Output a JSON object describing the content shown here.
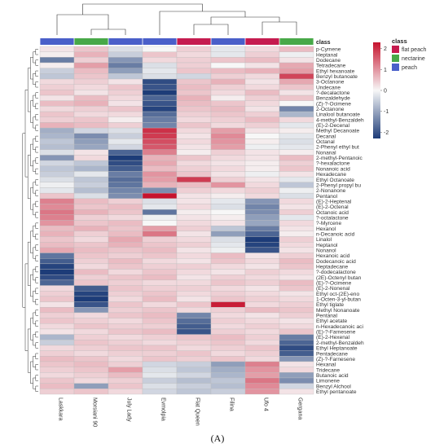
{
  "caption": "(A)",
  "chart_data": {
    "type": "heatmap",
    "title": "",
    "columns": [
      "Laskkara",
      "Morsiani 90",
      "July Lady",
      "Evmolpia",
      "Flat Queen",
      "Filina",
      "Ufo 4",
      "Gergana"
    ],
    "column_classes": [
      "peach",
      "nectarine",
      "peach",
      "peach",
      "flat peach",
      "peach",
      "flat peach",
      "nectarine"
    ],
    "class_annotation_label": "class",
    "rows": [
      "p-Cymene",
      "Heptanal",
      "Dodecane",
      "Tetradecane",
      "Ethyl hexanoate",
      "Benzyl butanoate",
      "3-Octanone",
      "Undecane",
      "?-decalactone",
      "Benzaldehyde",
      "(Z)-?-Ocimene",
      "2-Octanone",
      "Linalool butanoate",
      "4-methyl-Benzaldeh",
      "(E)-2-Decenal",
      "Methyl Decanoate",
      "Decanal",
      "Octanal",
      "2-Phenyl ethyl but",
      "Nonanal",
      "2-methyl-Pentanoic",
      "?-hexalactone",
      "Nonanoic acid",
      "Hexadecane",
      "Ethyl Octanoate",
      "2-Phenyl propyl bu",
      "2-Nonanone",
      "Pentanol",
      "(E)-2-Heptenal",
      "(E)-2-Octenal",
      "Octanoic acid",
      "?-octalactone",
      "?-Myrcene",
      "Hexanol",
      "n-Decanoic acid",
      "Linalol",
      "Heptanol",
      "Nonanol",
      "Hexanoic acid",
      "Dodecanoic acid",
      "Heptadecane",
      "?-dodecalactone",
      "(2E)-Octenyl butan",
      "(E)-?-Ocimene",
      "(E)-2-Nonenal",
      "Ethyl oct-(2E)-eno",
      "1-Octen-3-yl-butan",
      "Ethyl tiglate",
      "Methyl Nonanoate",
      "Pentanal",
      "Ethyl acetate",
      "n-Hexadecanoic aci",
      "(E)-?-Farnesene",
      "(E)-2-Hexenal",
      "2-methyl-Benzaldeh",
      "Ethyl Heptanoate",
      "Pentadecane",
      "(Z)-?-Farnesene",
      "Hexanal",
      "Tridecane",
      "Butanoic acid",
      "Limonene",
      "Benzyl Alchool",
      "Ethyl pentanoate"
    ],
    "values": [
      [
        0.2,
        0.5,
        -0.3,
        0.0,
        0.4,
        -0.2,
        0.3,
        0.6
      ],
      [
        0.1,
        0.7,
        -0.5,
        0.5,
        0.3,
        -0.2,
        0.4,
        -0.1
      ],
      [
        -1.5,
        0.4,
        -1.2,
        0.3,
        0.4,
        0.5,
        0.6,
        0.2
      ],
      [
        0.1,
        0.9,
        -1.5,
        -0.3,
        0.4,
        0.0,
        0.2,
        0.8
      ],
      [
        -0.5,
        0.6,
        -1.1,
        -0.2,
        0.5,
        0.6,
        0.7,
        0.9
      ],
      [
        -0.6,
        0.5,
        -0.6,
        -0.3,
        -0.4,
        0.4,
        0.3,
        1.8
      ],
      [
        0.3,
        0.4,
        0.2,
        -2.1,
        0.5,
        0.7,
        0.2,
        0.8
      ],
      [
        0.4,
        0.3,
        0.5,
        -2.0,
        0.6,
        0.4,
        0.3,
        0.5
      ],
      [
        0.5,
        0.2,
        0.4,
        -2.3,
        0.5,
        0.3,
        0.6,
        0.2
      ],
      [
        0.2,
        0.6,
        0.3,
        -1.8,
        0.7,
        0.1,
        0.4,
        0.5
      ],
      [
        0.6,
        0.7,
        0.2,
        -2.0,
        0.6,
        0.5,
        0.3,
        0.0
      ],
      [
        0.3,
        0.4,
        0.5,
        -2.2,
        0.5,
        0.6,
        0.2,
        -1.4
      ],
      [
        0.5,
        0.3,
        0.3,
        -1.7,
        0.4,
        0.5,
        0.4,
        -0.8
      ],
      [
        0.4,
        0.5,
        0.1,
        -1.5,
        0.3,
        0.4,
        0.6,
        0.3
      ],
      [
        0.7,
        0.6,
        0.4,
        -1.4,
        0.5,
        0.3,
        0.4,
        -0.2
      ],
      [
        -0.9,
        -0.4,
        -0.3,
        2.0,
        0.3,
        0.9,
        0.2,
        0.1
      ],
      [
        -0.8,
        -1.3,
        -0.5,
        1.9,
        0.2,
        1.1,
        0.0,
        -0.2
      ],
      [
        -0.6,
        -1.1,
        -0.2,
        1.7,
        0.3,
        1.0,
        0.1,
        -0.3
      ],
      [
        -0.7,
        -1.0,
        -0.4,
        1.6,
        0.2,
        0.9,
        -0.1,
        -0.2
      ],
      [
        -0.3,
        0.2,
        -1.8,
        1.2,
        0.1,
        0.4,
        0.2,
        0.1
      ],
      [
        -1.2,
        0.3,
        -2.3,
        0.7,
        0.5,
        0.3,
        0.2,
        0.6
      ],
      [
        -0.4,
        -0.6,
        -2.1,
        0.8,
        0.3,
        0.2,
        0.1,
        0.4
      ],
      [
        -0.6,
        -0.8,
        -1.9,
        0.6,
        0.4,
        0.3,
        0.1,
        0.5
      ],
      [
        -0.5,
        -0.2,
        -1.5,
        1.0,
        0.5,
        0.2,
        -0.1,
        0.2
      ],
      [
        -0.3,
        -0.6,
        -1.7,
        0.9,
        1.9,
        0.4,
        0.2,
        -0.2
      ],
      [
        -0.1,
        -0.5,
        -1.6,
        0.7,
        0.6,
        1.0,
        0.3,
        -0.6
      ],
      [
        -0.2,
        -0.7,
        -1.4,
        -1.3,
        0.4,
        0.3,
        0.4,
        -0.1
      ],
      [
        0.5,
        -0.3,
        -1.3,
        2.3,
        0.2,
        0.1,
        0.3,
        -0.3
      ],
      [
        1.2,
        0.6,
        0.4,
        -0.3,
        0.2,
        -0.2,
        -1.2,
        0.3
      ],
      [
        1.1,
        0.5,
        0.6,
        -0.2,
        0.3,
        -0.3,
        -1.4,
        0.2
      ],
      [
        1.3,
        0.7,
        0.5,
        -1.6,
        0.1,
        0.0,
        -1.3,
        0.4
      ],
      [
        1.2,
        0.4,
        0.3,
        -0.1,
        0.2,
        0.1,
        -1.1,
        -0.2
      ],
      [
        1.0,
        0.5,
        0.6,
        0.0,
        0.3,
        0.2,
        -1.0,
        0.3
      ],
      [
        0.6,
        0.7,
        0.5,
        0.9,
        0.4,
        -0.6,
        -1.5,
        0.2
      ],
      [
        0.7,
        0.4,
        0.6,
        1.3,
        0.2,
        -1.1,
        -1.8,
        0.1
      ],
      [
        0.5,
        0.3,
        0.8,
        0.4,
        0.3,
        -0.3,
        -2.3,
        0.4
      ],
      [
        0.6,
        0.5,
        0.7,
        0.5,
        0.4,
        -0.2,
        -2.2,
        0.3
      ],
      [
        0.8,
        0.6,
        0.5,
        0.6,
        0.2,
        -0.1,
        -2.0,
        0.2
      ],
      [
        -1.6,
        0.5,
        0.4,
        0.5,
        0.3,
        0.6,
        0.2,
        0.4
      ],
      [
        -1.9,
        0.4,
        0.6,
        0.3,
        0.2,
        0.5,
        0.3,
        0.6
      ],
      [
        -2.2,
        0.3,
        0.5,
        0.4,
        0.4,
        0.3,
        0.2,
        0.5
      ],
      [
        -2.3,
        0.6,
        0.3,
        0.5,
        0.3,
        0.2,
        0.4,
        0.3
      ],
      [
        -2.1,
        0.4,
        0.5,
        0.6,
        0.2,
        0.4,
        0.3,
        0.2
      ],
      [
        -1.8,
        0.5,
        0.4,
        0.3,
        0.3,
        0.5,
        0.4,
        0.6
      ],
      [
        0.3,
        -1.9,
        0.5,
        0.4,
        0.4,
        0.3,
        0.2,
        0.5
      ],
      [
        0.4,
        -2.2,
        0.4,
        0.5,
        0.3,
        0.4,
        0.3,
        0.2
      ],
      [
        0.5,
        -2.3,
        0.3,
        0.6,
        0.2,
        0.5,
        0.4,
        0.3
      ],
      [
        0.2,
        -2.0,
        0.5,
        0.3,
        0.5,
        2.2,
        0.3,
        0.4
      ],
      [
        0.6,
        -1.2,
        0.4,
        0.5,
        0.3,
        0.4,
        0.6,
        0.5
      ],
      [
        0.4,
        0.3,
        0.5,
        0.6,
        -1.4,
        0.3,
        0.2,
        0.4
      ],
      [
        0.5,
        0.4,
        0.3,
        0.5,
        -1.7,
        0.4,
        0.3,
        0.2
      ],
      [
        0.3,
        0.5,
        0.4,
        0.4,
        -1.9,
        0.3,
        0.4,
        0.3
      ],
      [
        0.2,
        0.3,
        0.5,
        0.6,
        -2.0,
        0.4,
        0.3,
        0.5
      ],
      [
        -0.8,
        0.4,
        0.3,
        0.4,
        0.5,
        0.6,
        0.4,
        -1.5
      ],
      [
        -0.5,
        0.5,
        0.4,
        0.3,
        0.4,
        0.5,
        0.3,
        -1.8
      ],
      [
        0.3,
        0.4,
        0.5,
        0.5,
        0.3,
        0.4,
        0.5,
        -2.1
      ],
      [
        0.4,
        0.3,
        0.4,
        0.4,
        0.5,
        0.3,
        0.4,
        -1.9
      ],
      [
        0.6,
        0.5,
        0.3,
        0.5,
        0.4,
        0.5,
        0.3,
        -1.2
      ],
      [
        0.5,
        0.6,
        0.4,
        -0.4,
        -0.5,
        -1.1,
        1.2,
        0.2
      ],
      [
        0.4,
        0.5,
        0.9,
        -0.3,
        -0.6,
        -0.9,
        1.0,
        0.3
      ],
      [
        0.3,
        0.4,
        0.6,
        -0.2,
        -0.4,
        -0.8,
        0.9,
        -1.1
      ],
      [
        0.5,
        0.3,
        0.4,
        -0.5,
        -0.7,
        -0.6,
        1.3,
        -1.3
      ],
      [
        0.6,
        -1.1,
        0.5,
        -0.3,
        -0.5,
        -0.7,
        1.1,
        -0.4
      ],
      [
        0.4,
        0.5,
        0.3,
        -0.4,
        -0.6,
        -0.5,
        1.0,
        0.2
      ]
    ],
    "color_scale": {
      "min": -2.3,
      "max": 2.3,
      "low": "#1d3c78",
      "mid": "#f7f7f7",
      "high": "#c6132e"
    },
    "colorbar_ticks": [
      2,
      1,
      0,
      -1,
      -2
    ],
    "legend": {
      "title": "class",
      "items": [
        {
          "label": "flat peach",
          "color": "#c51b4f"
        },
        {
          "label": "nectarine",
          "color": "#48a848"
        },
        {
          "label": "peach",
          "color": "#4a5fc9"
        }
      ]
    },
    "row_clustering": true,
    "column_clustering": true
  }
}
